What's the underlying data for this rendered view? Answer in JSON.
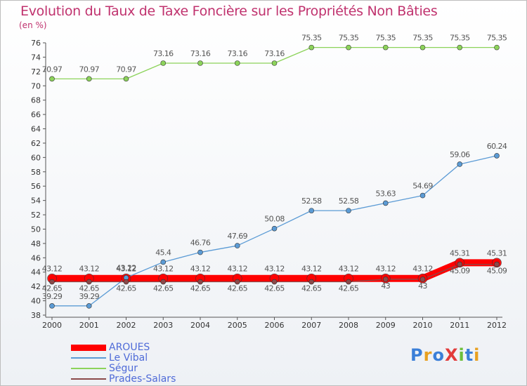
{
  "title": "Evolution du Taux de Taxe Foncière sur les Propriétés Non Bâties",
  "unit_label": "(en %)",
  "logo": "ProXiti",
  "chart_data": {
    "type": "line",
    "title": "Evolution du Taux de Taxe Foncière sur les Propriétés Non Bâties",
    "ylabel": "(en %)",
    "xlabel": "",
    "x": [
      "2000",
      "2001",
      "2002",
      "2003",
      "2004",
      "2005",
      "2006",
      "2007",
      "2008",
      "2009",
      "2010",
      "2011",
      "2012"
    ],
    "ylim": [
      38,
      76
    ],
    "yticks": [
      38,
      40,
      42,
      44,
      46,
      48,
      50,
      52,
      54,
      56,
      58,
      60,
      62,
      64,
      66,
      68,
      70,
      72,
      74,
      76
    ],
    "grid": false,
    "legend_position": "bottom-left",
    "series": [
      {
        "name": "AROUES",
        "color": "#ff0000",
        "values": [
          43.12,
          43.12,
          43.12,
          43.12,
          43.12,
          43.12,
          43.12,
          43.12,
          43.12,
          43.12,
          43.12,
          45.31,
          45.31
        ]
      },
      {
        "name": "Le Vibal",
        "color": "#5b9bd5",
        "values": [
          39.29,
          39.29,
          43.22,
          45.4,
          46.76,
          47.69,
          50.08,
          52.58,
          52.58,
          53.63,
          54.69,
          59.06,
          60.24
        ]
      },
      {
        "name": "Ségur",
        "color": "#8cd35a",
        "values": [
          70.97,
          70.97,
          70.97,
          73.16,
          73.16,
          73.16,
          73.16,
          75.35,
          75.35,
          75.35,
          75.35,
          75.35,
          75.35
        ]
      },
      {
        "name": "Prades-Salars",
        "color": "#8b4a4a",
        "values": [
          42.65,
          42.65,
          42.65,
          42.65,
          42.65,
          42.65,
          42.65,
          42.65,
          42.65,
          43,
          43,
          45.09,
          45.09
        ]
      }
    ]
  }
}
